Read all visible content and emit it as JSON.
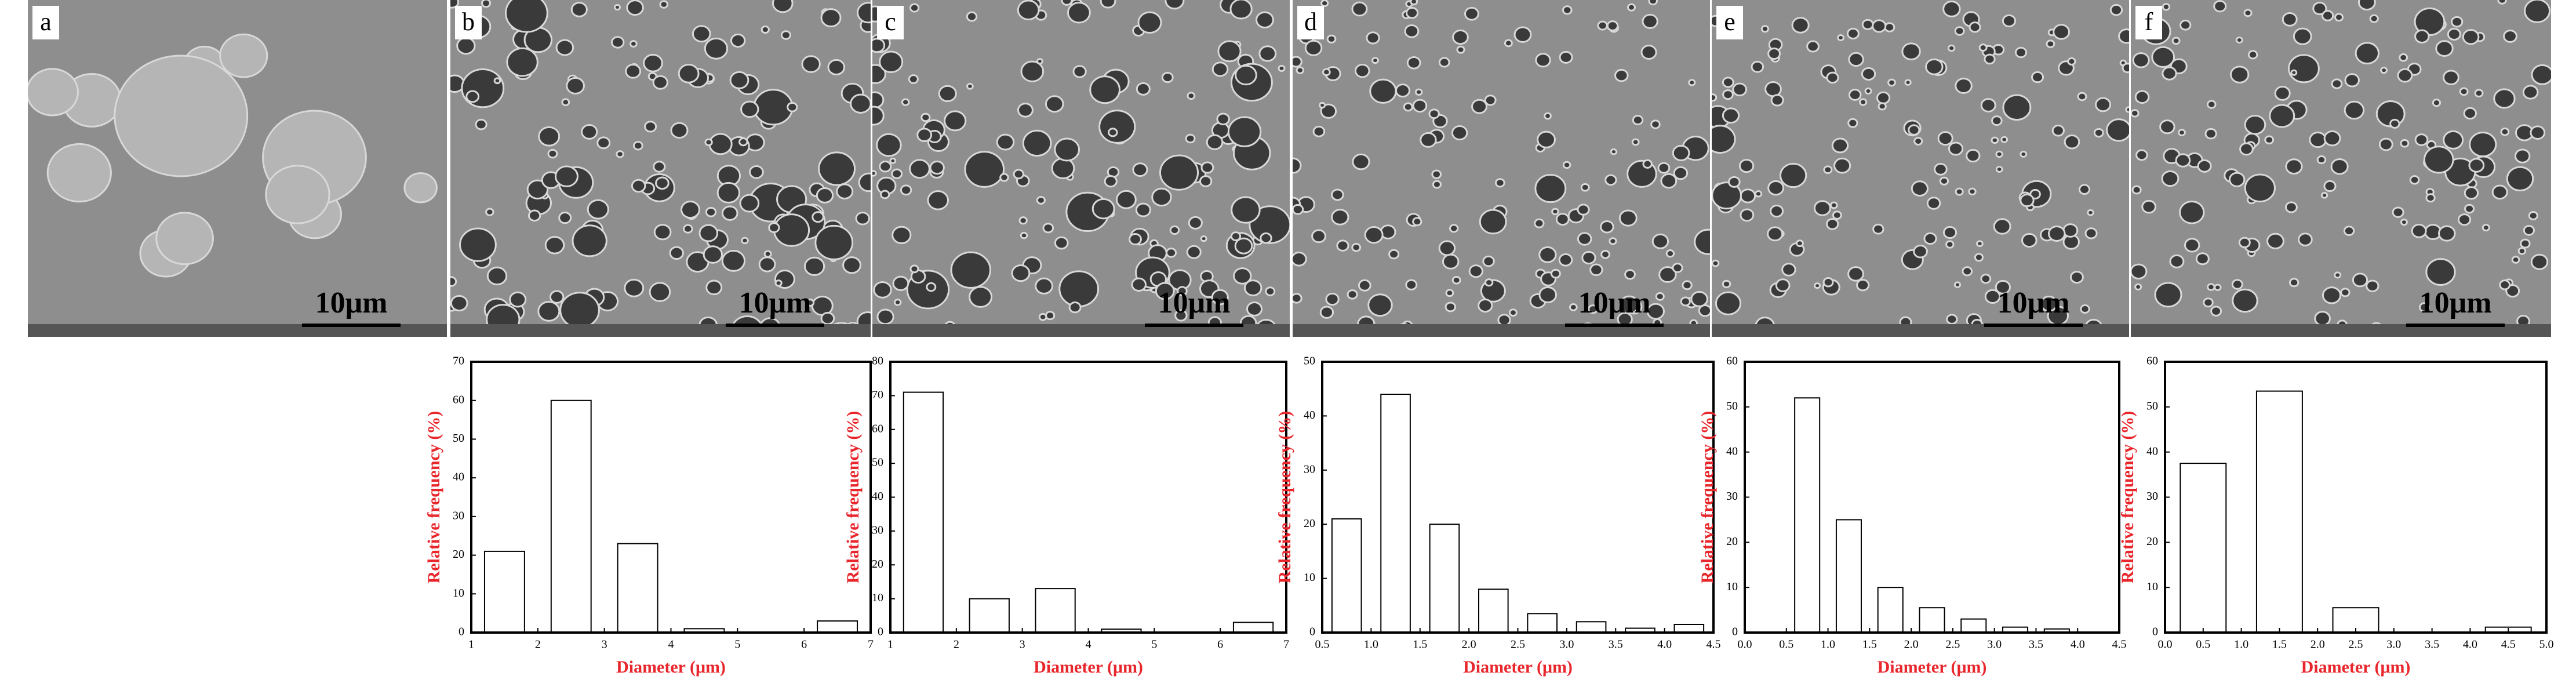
{
  "images": [
    {
      "label": "a",
      "scale_bar": "10μm"
    },
    {
      "label": "b",
      "scale_bar": "10μm"
    },
    {
      "label": "c",
      "scale_bar": "10μm"
    },
    {
      "label": "d",
      "scale_bar": "10μm"
    },
    {
      "label": "e",
      "scale_bar": "10μm"
    },
    {
      "label": "f",
      "scale_bar": "10μm"
    }
  ],
  "chart_data": [
    {
      "type": "bar",
      "xlabel": "Diameter (μm)",
      "ylabel": "Relative frequency (%)",
      "x": [
        1.5,
        2.5,
        3.5,
        4.5,
        6.5
      ],
      "values": [
        21,
        60,
        23,
        1,
        3
      ],
      "xlim": [
        1,
        7
      ],
      "xticks": [
        1,
        2,
        3,
        4,
        5,
        6,
        7
      ],
      "ylim": [
        0,
        70
      ],
      "yticks": [
        0,
        10,
        20,
        30,
        40,
        50,
        60,
        70
      ],
      "color": "#ffffff"
    },
    {
      "type": "bar",
      "xlabel": "Diameter (μm)",
      "ylabel": "Relative frequency (%)",
      "x": [
        1.5,
        2.5,
        3.5,
        4.5,
        6.5
      ],
      "values": [
        71,
        10,
        13,
        1,
        3
      ],
      "xlim": [
        1,
        7
      ],
      "xticks": [
        1,
        2,
        3,
        4,
        5,
        6,
        7
      ],
      "ylim": [
        0,
        80
      ],
      "yticks": [
        0,
        10,
        20,
        30,
        40,
        50,
        60,
        70,
        80
      ],
      "color": "#ffffff"
    },
    {
      "type": "bar",
      "xlabel": "Diameter (μm)",
      "ylabel": "Relative frequency (%)",
      "x": [
        0.75,
        1.25,
        1.75,
        2.25,
        2.75,
        3.25,
        3.75,
        4.25
      ],
      "values": [
        21,
        44,
        20,
        8,
        3.5,
        2,
        0.8,
        1.5
      ],
      "xlim": [
        0.5,
        4.5
      ],
      "xticks": [
        0.5,
        {
          "value": 1,
          "label": "1.0"
        },
        1.5,
        {
          "value": 2,
          "label": "2.0"
        },
        2.5,
        {
          "value": 3,
          "label": "3.0"
        },
        3.5,
        {
          "value": 4,
          "label": "4.0"
        },
        4.5
      ],
      "ylim": [
        0,
        50
      ],
      "yticks": [
        0,
        10,
        20,
        30,
        40,
        50
      ],
      "color": "#ffffff"
    },
    {
      "type": "bar",
      "xlabel": "Diameter (μm)",
      "ylabel": "Relative frequency (%)",
      "x": [
        0.75,
        1.25,
        1.75,
        2.25,
        2.75,
        3.25,
        3.75
      ],
      "values": [
        52,
        25,
        10,
        5.5,
        3,
        1.2,
        0.8
      ],
      "xlim": [
        0,
        4.5
      ],
      "xticks": [
        {
          "value": 0,
          "label": "0.0"
        },
        0.5,
        {
          "value": 1,
          "label": "1.0"
        },
        1.5,
        {
          "value": 2,
          "label": "2.0"
        },
        2.5,
        {
          "value": 3,
          "label": "3.0"
        },
        3.5,
        {
          "value": 4,
          "label": "4.0"
        },
        4.5
      ],
      "ylim": [
        0,
        60
      ],
      "yticks": [
        0,
        10,
        20,
        30,
        40,
        50,
        60
      ],
      "color": "#ffffff"
    },
    {
      "type": "bar",
      "xlabel": "Diameter (μm)",
      "ylabel": "Relative frequency (%)",
      "x": [
        0.5,
        1.5,
        2.5,
        4.5
      ],
      "values": [
        37.5,
        53.5,
        5.5,
        1.2
      ],
      "xlim": [
        0,
        5
      ],
      "xticks": [
        {
          "value": 0,
          "label": "0.0"
        },
        0.5,
        {
          "value": 1,
          "label": "1.0"
        },
        1.5,
        {
          "value": 2,
          "label": "2.0"
        },
        2.5,
        {
          "value": 3,
          "label": "3.0"
        },
        3.5,
        {
          "value": 4,
          "label": "4.0"
        },
        4.5,
        {
          "value": 5,
          "label": "5.0"
        }
      ],
      "ylim": [
        0,
        60
      ],
      "yticks": [
        0,
        10,
        20,
        30,
        40,
        50,
        60
      ],
      "color": "#ffffff"
    }
  ]
}
